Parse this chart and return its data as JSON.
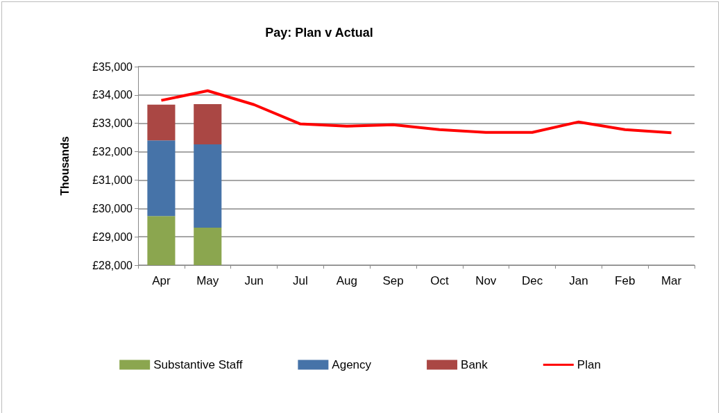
{
  "chart_data": {
    "type": "bar",
    "title": "Pay: Plan v Actual",
    "ylabel": "Thousands",
    "categories": [
      "Apr",
      "May",
      "Jun",
      "Jul",
      "Aug",
      "Sep",
      "Oct",
      "Nov",
      "Dec",
      "Jan",
      "Feb",
      "Mar"
    ],
    "series": [
      {
        "name": "Substantive Staff",
        "color": "#8ba64f",
        "values": [
          29730,
          29320,
          null,
          null,
          null,
          null,
          null,
          null,
          null,
          null,
          null,
          null
        ]
      },
      {
        "name": "Agency",
        "color": "#4673a8",
        "base": [
          29730,
          29320,
          null,
          null,
          null,
          null,
          null,
          null,
          null,
          null,
          null,
          null
        ],
        "values": [
          2670,
          2940,
          null,
          null,
          null,
          null,
          null,
          null,
          null,
          null,
          null,
          null
        ]
      },
      {
        "name": "Bank",
        "color": "#aa4744",
        "base": [
          32400,
          32260,
          null,
          null,
          null,
          null,
          null,
          null,
          null,
          null,
          null,
          null
        ],
        "values": [
          1260,
          1420,
          null,
          null,
          null,
          null,
          null,
          null,
          null,
          null,
          null,
          null
        ]
      },
      {
        "name": "Plan",
        "type": "line",
        "color": "#ff0000",
        "marker": "none",
        "line_style": "solid",
        "values": [
          33810,
          34150,
          33660,
          32980,
          32900,
          32950,
          32780,
          32680,
          32680,
          33050,
          32780,
          32670
        ]
      }
    ],
    "ylim": [
      28000,
      35000
    ],
    "yticks": [
      {
        "value": 28000,
        "label": "£28,000"
      },
      {
        "value": 29000,
        "label": "£29,000"
      },
      {
        "value": 30000,
        "label": "£30,000"
      },
      {
        "value": 31000,
        "label": "£31,000"
      },
      {
        "value": 32000,
        "label": "£32,000"
      },
      {
        "value": 33000,
        "label": "£33,000"
      },
      {
        "value": 34000,
        "label": "£34,000"
      },
      {
        "value": 35000,
        "label": "£35,000"
      }
    ],
    "grid": "y",
    "legend": "bottom"
  }
}
